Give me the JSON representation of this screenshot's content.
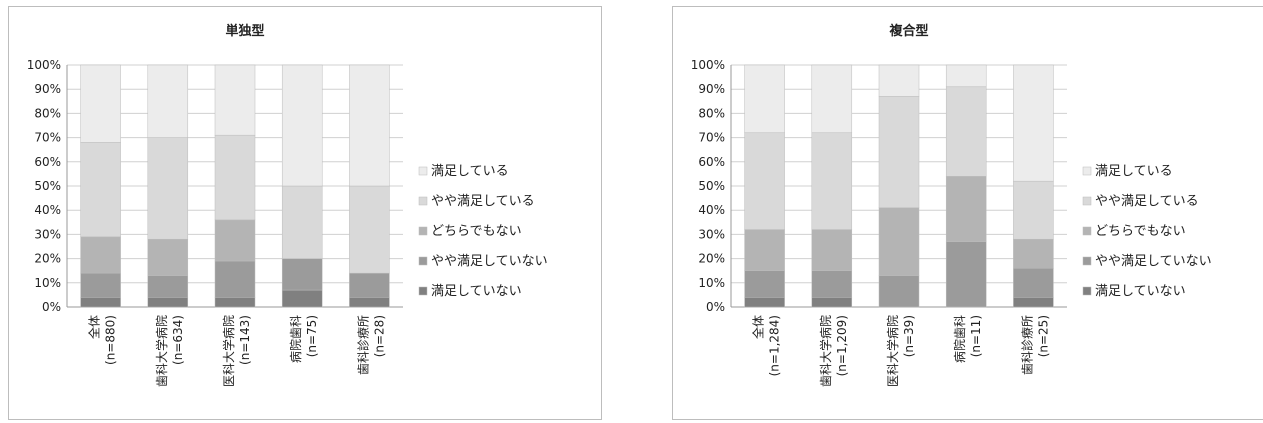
{
  "colors": {
    "satisfied": "#ececec",
    "somewhat_satisfied": "#d9d9d9",
    "neutral": "#b4b4b4",
    "somewhat_dissatisfied": "#9b9b9b",
    "dissatisfied": "#808080"
  },
  "chart_data": [
    {
      "type": "bar",
      "stacked": true,
      "title": "単独型",
      "yticks": [
        "0%",
        "10%",
        "20%",
        "30%",
        "40%",
        "50%",
        "60%",
        "70%",
        "80%",
        "90%",
        "100%"
      ],
      "ylim": [
        0,
        100
      ],
      "categories": [
        {
          "name": "全体",
          "n": "(n=880)"
        },
        {
          "name": "歯科大学病院",
          "n": "(n=634)"
        },
        {
          "name": "医科大学病院",
          "n": "(n=143)"
        },
        {
          "name": "病院歯科",
          "n": "(n=75)"
        },
        {
          "name": "歯科診療所",
          "n": "(n=28)"
        }
      ],
      "series": [
        {
          "name": "満足していない",
          "color_key": "dissatisfied",
          "values": [
            4,
            4,
            4,
            7,
            4
          ]
        },
        {
          "name": "やや満足していない",
          "color_key": "somewhat_dissatisfied",
          "values": [
            10,
            9,
            15,
            13,
            10
          ]
        },
        {
          "name": "どちらでもない",
          "color_key": "neutral",
          "values": [
            15,
            15,
            17,
            0,
            0
          ]
        },
        {
          "name": "やや満足している",
          "color_key": "somewhat_satisfied",
          "values": [
            39,
            42,
            35,
            30,
            36
          ]
        },
        {
          "name": "満足している",
          "color_key": "satisfied",
          "values": [
            32,
            30,
            29,
            50,
            50
          ]
        }
      ],
      "legend": [
        "満足している",
        "やや満足している",
        "どちらでもない",
        "やや満足していない",
        "満足していない"
      ],
      "legend_position": "right",
      "grid": true
    },
    {
      "type": "bar",
      "stacked": true,
      "title": "複合型",
      "yticks": [
        "0%",
        "10%",
        "20%",
        "30%",
        "40%",
        "50%",
        "60%",
        "70%",
        "80%",
        "90%",
        "100%"
      ],
      "ylim": [
        0,
        100
      ],
      "categories": [
        {
          "name": "全体",
          "n": "(n=1,284)"
        },
        {
          "name": "歯科大学病院",
          "n": "(n=1,209)"
        },
        {
          "name": "医科大学病院",
          "n": "(n=39)"
        },
        {
          "name": "病院歯科",
          "n": "(n=11)"
        },
        {
          "name": "歯科診療所",
          "n": "(n=25)"
        }
      ],
      "series": [
        {
          "name": "満足していない",
          "color_key": "dissatisfied",
          "values": [
            4,
            4,
            0,
            0,
            4
          ]
        },
        {
          "name": "やや満足していない",
          "color_key": "somewhat_dissatisfied",
          "values": [
            11,
            11,
            13,
            27,
            12
          ]
        },
        {
          "name": "どちらでもない",
          "color_key": "neutral",
          "values": [
            17,
            17,
            28,
            27,
            12
          ]
        },
        {
          "name": "やや満足している",
          "color_key": "somewhat_satisfied",
          "values": [
            40,
            40,
            46,
            37,
            24
          ]
        },
        {
          "name": "満足している",
          "color_key": "satisfied",
          "values": [
            28,
            28,
            13,
            9,
            48
          ]
        }
      ],
      "legend": [
        "満足している",
        "やや満足している",
        "どちらでもない",
        "やや満足していない",
        "満足していない"
      ],
      "legend_position": "right",
      "grid": true
    }
  ]
}
